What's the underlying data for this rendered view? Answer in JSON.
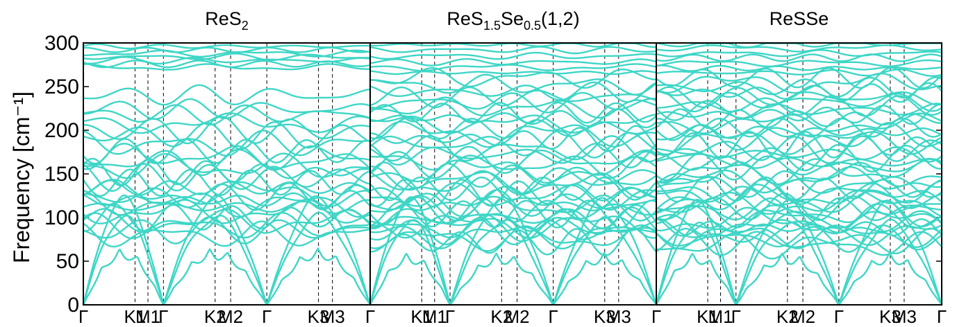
{
  "colors": {
    "band": "#3fd6c6"
  },
  "chart_data": {
    "type": "line",
    "ylabel": "Frequency [cm⁻¹]",
    "ylim": [
      0,
      300
    ],
    "yticks": [
      0,
      50,
      100,
      150,
      200,
      250,
      300
    ],
    "grid": false,
    "legend": "none",
    "panels": [
      {
        "title": {
          "base": "ReS",
          "sub": "2",
          "rest": ""
        },
        "path_labels": [
          "Γ",
          "K1",
          "M1",
          "Γ",
          "K2",
          "M2",
          "Γ",
          "K3",
          "M3",
          "Γ"
        ],
        "path_positions": [
          0,
          1,
          1.25,
          1.55,
          2.55,
          2.85,
          3.55,
          4.55,
          4.82,
          5.55
        ],
        "num_bands": 36,
        "optical_levels": [
          272,
          276,
          280,
          284,
          288,
          292,
          296,
          240,
          224,
          218,
          208,
          200,
          194,
          184,
          176,
          170,
          164,
          158,
          152,
          146,
          140,
          134,
          128,
          124,
          120,
          116,
          112,
          106,
          100,
          95,
          90,
          85,
          80
        ],
        "acoustic_max": [
          65,
          100,
          120
        ]
      },
      {
        "title": {
          "base": "ReS",
          "sub": "1.5",
          "rest": "Se",
          "sub2": "0.5",
          "tail": "(1,2)"
        },
        "path_labels": [
          "Γ",
          "K1",
          "M1",
          "Γ",
          "K2",
          "M2",
          "Γ",
          "K3",
          "M3",
          "Γ"
        ],
        "path_positions": [
          0,
          1,
          1.25,
          1.55,
          2.55,
          2.85,
          3.55,
          4.55,
          4.82,
          5.55
        ],
        "num_bands": 48,
        "optical_levels": [
          298,
          292,
          285,
          278,
          272,
          266,
          260,
          252,
          244,
          238,
          232,
          226,
          220,
          214,
          208,
          202,
          196,
          190,
          184,
          178,
          172,
          166,
          160,
          154,
          148,
          143,
          138,
          133,
          128,
          124,
          120,
          116,
          112,
          108,
          104,
          100,
          96,
          92,
          88,
          84,
          80,
          76,
          72
        ],
        "acoustic_max": [
          60,
          95,
          118
        ]
      },
      {
        "title": {
          "base": "ReSSe",
          "sub": "",
          "rest": ""
        },
        "path_labels": [
          "Γ",
          "K1",
          "M1",
          "Γ",
          "K2",
          "M2",
          "Γ",
          "K3",
          "M3",
          "Γ"
        ],
        "path_positions": [
          0,
          1,
          1.25,
          1.55,
          2.55,
          2.85,
          3.55,
          4.55,
          4.82,
          5.55
        ],
        "num_bands": 54,
        "optical_levels": [
          299,
          294,
          288,
          283,
          277,
          271,
          266,
          260,
          254,
          249,
          243,
          238,
          233,
          228,
          223,
          218,
          213,
          208,
          203,
          198,
          193,
          188,
          183,
          178,
          173,
          168,
          163,
          158,
          153,
          148,
          143,
          138,
          133,
          128,
          124,
          120,
          116,
          112,
          108,
          104,
          100,
          96,
          92,
          88,
          84,
          80,
          76,
          72,
          68
        ],
        "acoustic_max": [
          60,
          92,
          115
        ]
      }
    ]
  }
}
